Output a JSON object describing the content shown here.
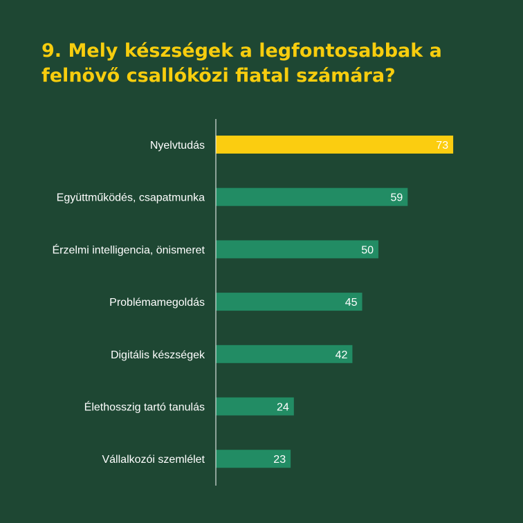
{
  "chart_data": {
    "type": "bar",
    "orientation": "horizontal",
    "title_line1": "9. Mely készségek a legfontosabbak a",
    "title_line2": "felnövő csallóközi fiatal számára?",
    "categories": [
      "Nyelvtudás",
      "Együttműködés, csapatmunka",
      "Érzelmi intelligencia, önismeret",
      "Problémamegoldás",
      "Digitális készségek",
      "Élethosszig tartó tanulás",
      "Vállalkozói szemlélet"
    ],
    "values": [
      73,
      59,
      50,
      45,
      42,
      24,
      23
    ],
    "highlight_index": 0,
    "colors": {
      "background": "#1e4733",
      "title": "#f7cd0e",
      "bar": "#228c64",
      "highlight": "#fbcd10",
      "text": "#ffffff",
      "axis": "#ffffff"
    },
    "grid": false,
    "legend": "none"
  }
}
